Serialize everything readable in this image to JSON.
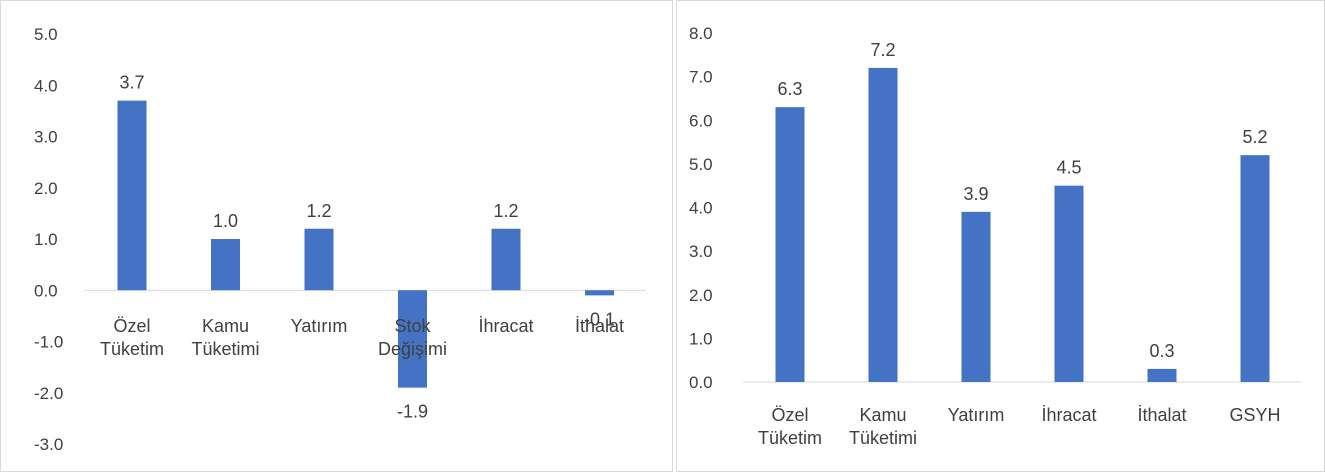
{
  "colors": {
    "bar": "#4472c4",
    "axis": "#d9d9d9",
    "text": "#404040"
  },
  "chart_data": [
    {
      "type": "bar",
      "title": "",
      "xlabel": "",
      "ylabel": "",
      "ylim": [
        -3.0,
        5.0
      ],
      "yticks": [
        "-3.0",
        "-2.0",
        "-1.0",
        "0.0",
        "1.0",
        "2.0",
        "3.0",
        "4.0",
        "5.0"
      ],
      "categories": [
        [
          "Özel",
          "Tüketim"
        ],
        [
          "Kamu",
          "Tüketimi"
        ],
        [
          "Yatırım"
        ],
        [
          "Stok",
          "Değişimi"
        ],
        [
          "İhracat"
        ],
        [
          "İthalat"
        ]
      ],
      "values": [
        3.7,
        1.0,
        1.2,
        -1.9,
        1.2,
        -0.1
      ],
      "data_labels": [
        "3.7",
        "1.0",
        "1.2",
        "-1.9",
        "1.2",
        "-0.1"
      ],
      "grid": false,
      "legend": "none"
    },
    {
      "type": "bar",
      "title": "",
      "xlabel": "",
      "ylabel": "",
      "ylim": [
        0.0,
        8.0
      ],
      "yticks": [
        "0.0",
        "1.0",
        "2.0",
        "3.0",
        "4.0",
        "5.0",
        "6.0",
        "7.0",
        "8.0"
      ],
      "categories": [
        [
          "Özel",
          "Tüketim"
        ],
        [
          "Kamu",
          "Tüketimi"
        ],
        [
          "Yatırım"
        ],
        [
          "İhracat"
        ],
        [
          "İthalat"
        ],
        [
          "GSYH"
        ]
      ],
      "values": [
        6.3,
        7.2,
        3.9,
        4.5,
        0.3,
        5.2
      ],
      "data_labels": [
        "6.3",
        "7.2",
        "3.9",
        "4.5",
        "0.3",
        "5.2"
      ],
      "grid": false,
      "legend": "none"
    }
  ]
}
